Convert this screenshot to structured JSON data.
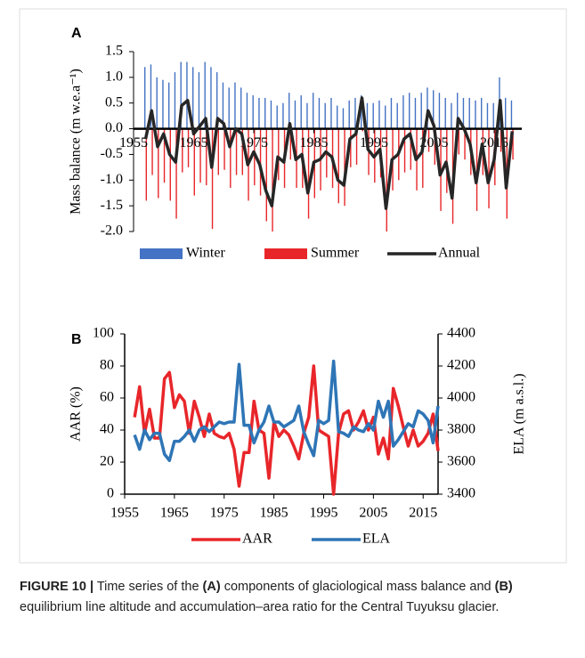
{
  "chart_data": [
    {
      "type": "bar",
      "panel": "A",
      "ylabel": "Mass balance (m w.e.a⁻¹)",
      "x": [
        1957,
        1958,
        1959,
        1960,
        1961,
        1962,
        1963,
        1964,
        1965,
        1966,
        1967,
        1968,
        1969,
        1970,
        1971,
        1972,
        1973,
        1974,
        1975,
        1976,
        1977,
        1978,
        1979,
        1980,
        1981,
        1982,
        1983,
        1984,
        1985,
        1986,
        1987,
        1988,
        1989,
        1990,
        1991,
        1992,
        1993,
        1994,
        1995,
        1996,
        1997,
        1998,
        1999,
        2000,
        2001,
        2002,
        2003,
        2004,
        2005,
        2006,
        2007,
        2008,
        2009,
        2010,
        2011,
        2012,
        2013,
        2014,
        2015,
        2016,
        2017,
        2018
      ],
      "xlim": [
        1955,
        2019
      ],
      "xticks": [
        1955,
        1965,
        1975,
        1985,
        1995,
        2005,
        2015
      ],
      "ylim": [
        -2.0,
        1.5
      ],
      "yticks": [
        1.5,
        {
          "value": 1.0,
          "label": "1.0"
        },
        0.5,
        {
          "value": 0.0,
          "label": "0.0"
        },
        -0.5,
        {
          "value": -1.0,
          "label": "-1.0"
        },
        -1.5,
        {
          "value": -2.0,
          "label": "-2.0"
        }
      ],
      "series": [
        {
          "name": "Winter",
          "type": "bar",
          "color": "#4472c4",
          "values": [
            1.2,
            1.25,
            1.0,
            0.95,
            0.9,
            1.1,
            1.3,
            1.3,
            1.2,
            1.1,
            1.3,
            1.2,
            1.1,
            0.9,
            0.8,
            0.9,
            0.8,
            0.7,
            0.65,
            0.6,
            0.6,
            0.55,
            0.45,
            0.5,
            0.7,
            0.55,
            0.65,
            0.5,
            0.7,
            0.6,
            0.5,
            0.6,
            0.45,
            0.4,
            0.55,
            0.6,
            0.65,
            0.5,
            0.5,
            0.55,
            0.45,
            0.6,
            0.5,
            0.65,
            0.7,
            0.6,
            0.7,
            0.8,
            0.75,
            0.7,
            0.6,
            0.5,
            0.7,
            0.6,
            0.6,
            0.55,
            0.6,
            0.5,
            0.5,
            1.0,
            0.6,
            0.55
          ]
        },
        {
          "name": "Summer",
          "type": "bar",
          "color": "#e8262a",
          "values": [
            -1.4,
            -0.9,
            -1.35,
            -1.05,
            -1.4,
            -1.75,
            -0.85,
            -0.75,
            -1.3,
            -1.05,
            -1.1,
            -1.95,
            -0.9,
            -0.8,
            -1.15,
            -0.9,
            -0.9,
            -1.4,
            -1.1,
            -1.3,
            -1.8,
            -2.0,
            -1.0,
            -1.15,
            -0.6,
            -1.15,
            -1.15,
            -1.75,
            -1.35,
            -1.2,
            -0.95,
            -1.15,
            -1.45,
            -1.5,
            -0.75,
            -0.7,
            -0.05,
            -0.9,
            -1.05,
            -0.95,
            -2.0,
            -1.2,
            -1.0,
            -0.85,
            -0.8,
            -1.2,
            -1.15,
            -0.45,
            -0.7,
            -1.6,
            -1.25,
            -1.85,
            -0.5,
            -0.6,
            -0.9,
            -1.6,
            -0.9,
            -1.55,
            -1.1,
            -0.45,
            -1.75,
            -0.6
          ]
        },
        {
          "name": "Annual",
          "type": "line",
          "color": "#262626",
          "values": [
            -0.2,
            0.35,
            -0.35,
            -0.1,
            -0.5,
            -0.65,
            0.45,
            0.55,
            -0.1,
            0.05,
            0.2,
            -0.75,
            0.2,
            0.1,
            -0.35,
            0.0,
            -0.1,
            -0.7,
            -0.45,
            -0.7,
            -1.2,
            -1.5,
            -0.55,
            -0.65,
            0.1,
            -0.6,
            -0.5,
            -1.25,
            -0.65,
            -0.6,
            -0.45,
            -0.55,
            -1.0,
            -1.1,
            -0.2,
            -0.1,
            0.6,
            -0.4,
            -0.55,
            -0.4,
            -1.55,
            -0.6,
            -0.5,
            -0.2,
            -0.1,
            -0.6,
            -0.45,
            0.35,
            0.05,
            -0.9,
            -0.65,
            -1.35,
            0.2,
            0.0,
            -0.3,
            -1.05,
            -0.3,
            -1.05,
            -0.6,
            0.55,
            -1.15,
            -0.05
          ]
        }
      ]
    },
    {
      "type": "line",
      "panel": "B",
      "ylabel": "AAR (%)",
      "y2label": "ELA (m a.s.l.)",
      "x": [
        1957,
        1958,
        1959,
        1960,
        1961,
        1962,
        1963,
        1964,
        1965,
        1966,
        1967,
        1968,
        1969,
        1970,
        1971,
        1972,
        1973,
        1974,
        1975,
        1976,
        1977,
        1978,
        1979,
        1980,
        1981,
        1982,
        1983,
        1984,
        1985,
        1986,
        1987,
        1988,
        1989,
        1990,
        1991,
        1992,
        1993,
        1994,
        1995,
        1996,
        1997,
        1998,
        1999,
        2000,
        2001,
        2002,
        2003,
        2004,
        2005,
        2006,
        2007,
        2008,
        2009,
        2010,
        2011,
        2012,
        2013,
        2014,
        2015,
        2016,
        2017,
        2018
      ],
      "xlim": [
        1955,
        2018
      ],
      "xticks": [
        1955,
        1965,
        1975,
        1985,
        1995,
        2005,
        2015
      ],
      "ylim": [
        0,
        100
      ],
      "yticks": [
        0,
        20,
        40,
        60,
        80,
        100
      ],
      "y2lim": [
        3400,
        4400
      ],
      "y2ticks": [
        3400,
        3600,
        3800,
        4000,
        4200,
        4400
      ],
      "series": [
        {
          "name": "AAR",
          "color": "#e8262a",
          "values": [
            48,
            67,
            38,
            53,
            35,
            35,
            72,
            76,
            54,
            62,
            58,
            38,
            58,
            48,
            36,
            50,
            38,
            36,
            35,
            38,
            28,
            5,
            26,
            26,
            58,
            40,
            38,
            10,
            45,
            36,
            40,
            37,
            30,
            22,
            38,
            48,
            80,
            40,
            38,
            36,
            0,
            38,
            50,
            52,
            40,
            45,
            52,
            40,
            48,
            25,
            35,
            22,
            66,
            55,
            42,
            30,
            40,
            30,
            33,
            38,
            50,
            27
          ]
        },
        {
          "name": "ELA",
          "color": "#2e75b6",
          "axis": "y2",
          "values": [
            3770,
            3680,
            3800,
            3740,
            3780,
            3780,
            3650,
            3610,
            3730,
            3730,
            3760,
            3800,
            3730,
            3800,
            3820,
            3790,
            3820,
            3850,
            3840,
            3850,
            3850,
            4210,
            3830,
            3830,
            3720,
            3800,
            3850,
            3950,
            3850,
            3850,
            3820,
            3840,
            3860,
            3950,
            3790,
            3710,
            3640,
            3860,
            3840,
            3860,
            4230,
            3790,
            3780,
            3760,
            3820,
            3800,
            3790,
            3840,
            3800,
            3980,
            3880,
            3980,
            3700,
            3740,
            3790,
            3840,
            3820,
            3920,
            3900,
            3860,
            3720,
            3950
          ]
        }
      ]
    }
  ],
  "caption": {
    "figure_label": "FIGURE 10 |",
    "text_1": "Time series of the",
    "panel_a": "(A)",
    "text_2": "components of glaciological mass balance and",
    "panel_b": "(B)",
    "text_3": "equilibrium line altitude and accumulation–area ratio for the Central Tuyuksu glacier."
  }
}
